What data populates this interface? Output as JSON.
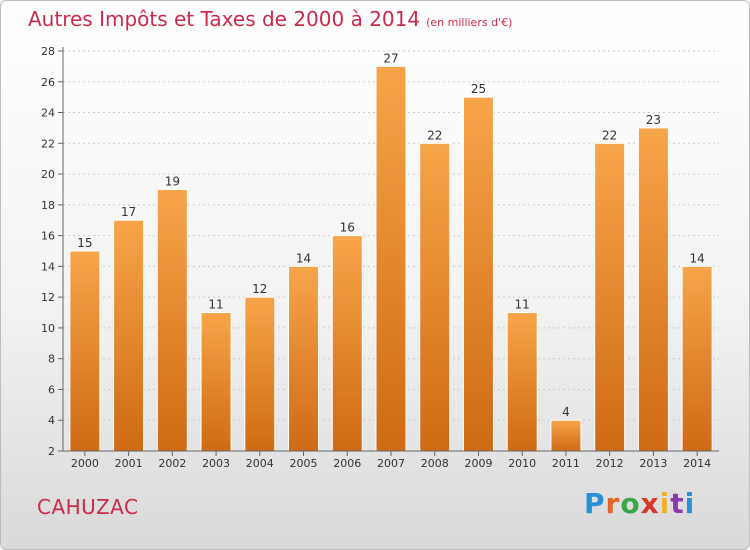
{
  "title": "Autres Impôts et Taxes de 2000 à 2014",
  "unit_note": "(en milliers d'€)",
  "commune": "CAHUZAC",
  "logo": {
    "text": "Proxiti",
    "letter_colors": [
      "#2a8fd6",
      "#e0662a",
      "#3aa64a",
      "#d43a2a",
      "#f0b22a",
      "#8a3ab0",
      "#2a8fd6"
    ]
  },
  "colors": {
    "bar_top": "#f7a54a",
    "bar_bottom": "#cf6a14",
    "axis": "#666666",
    "grid": "#cccccc",
    "label": "#333333",
    "title": "#cc2a4a"
  },
  "chart_data": {
    "type": "bar",
    "title": "Autres Impôts et Taxes de 2000 à 2014",
    "categories": [
      "2000",
      "2001",
      "2002",
      "2003",
      "2004",
      "2005",
      "2006",
      "2007",
      "2008",
      "2009",
      "2010",
      "2011",
      "2012",
      "2013",
      "2014"
    ],
    "values": [
      15,
      17,
      19,
      11,
      12,
      14,
      16,
      27,
      22,
      25,
      11,
      4,
      22,
      23,
      14
    ],
    "ylim": [
      2,
      28
    ],
    "yticks": [
      2,
      4,
      6,
      8,
      10,
      12,
      14,
      16,
      18,
      20,
      22,
      24,
      26,
      28
    ],
    "xlabel": "",
    "ylabel": "",
    "grid": true,
    "data_labels": true
  }
}
